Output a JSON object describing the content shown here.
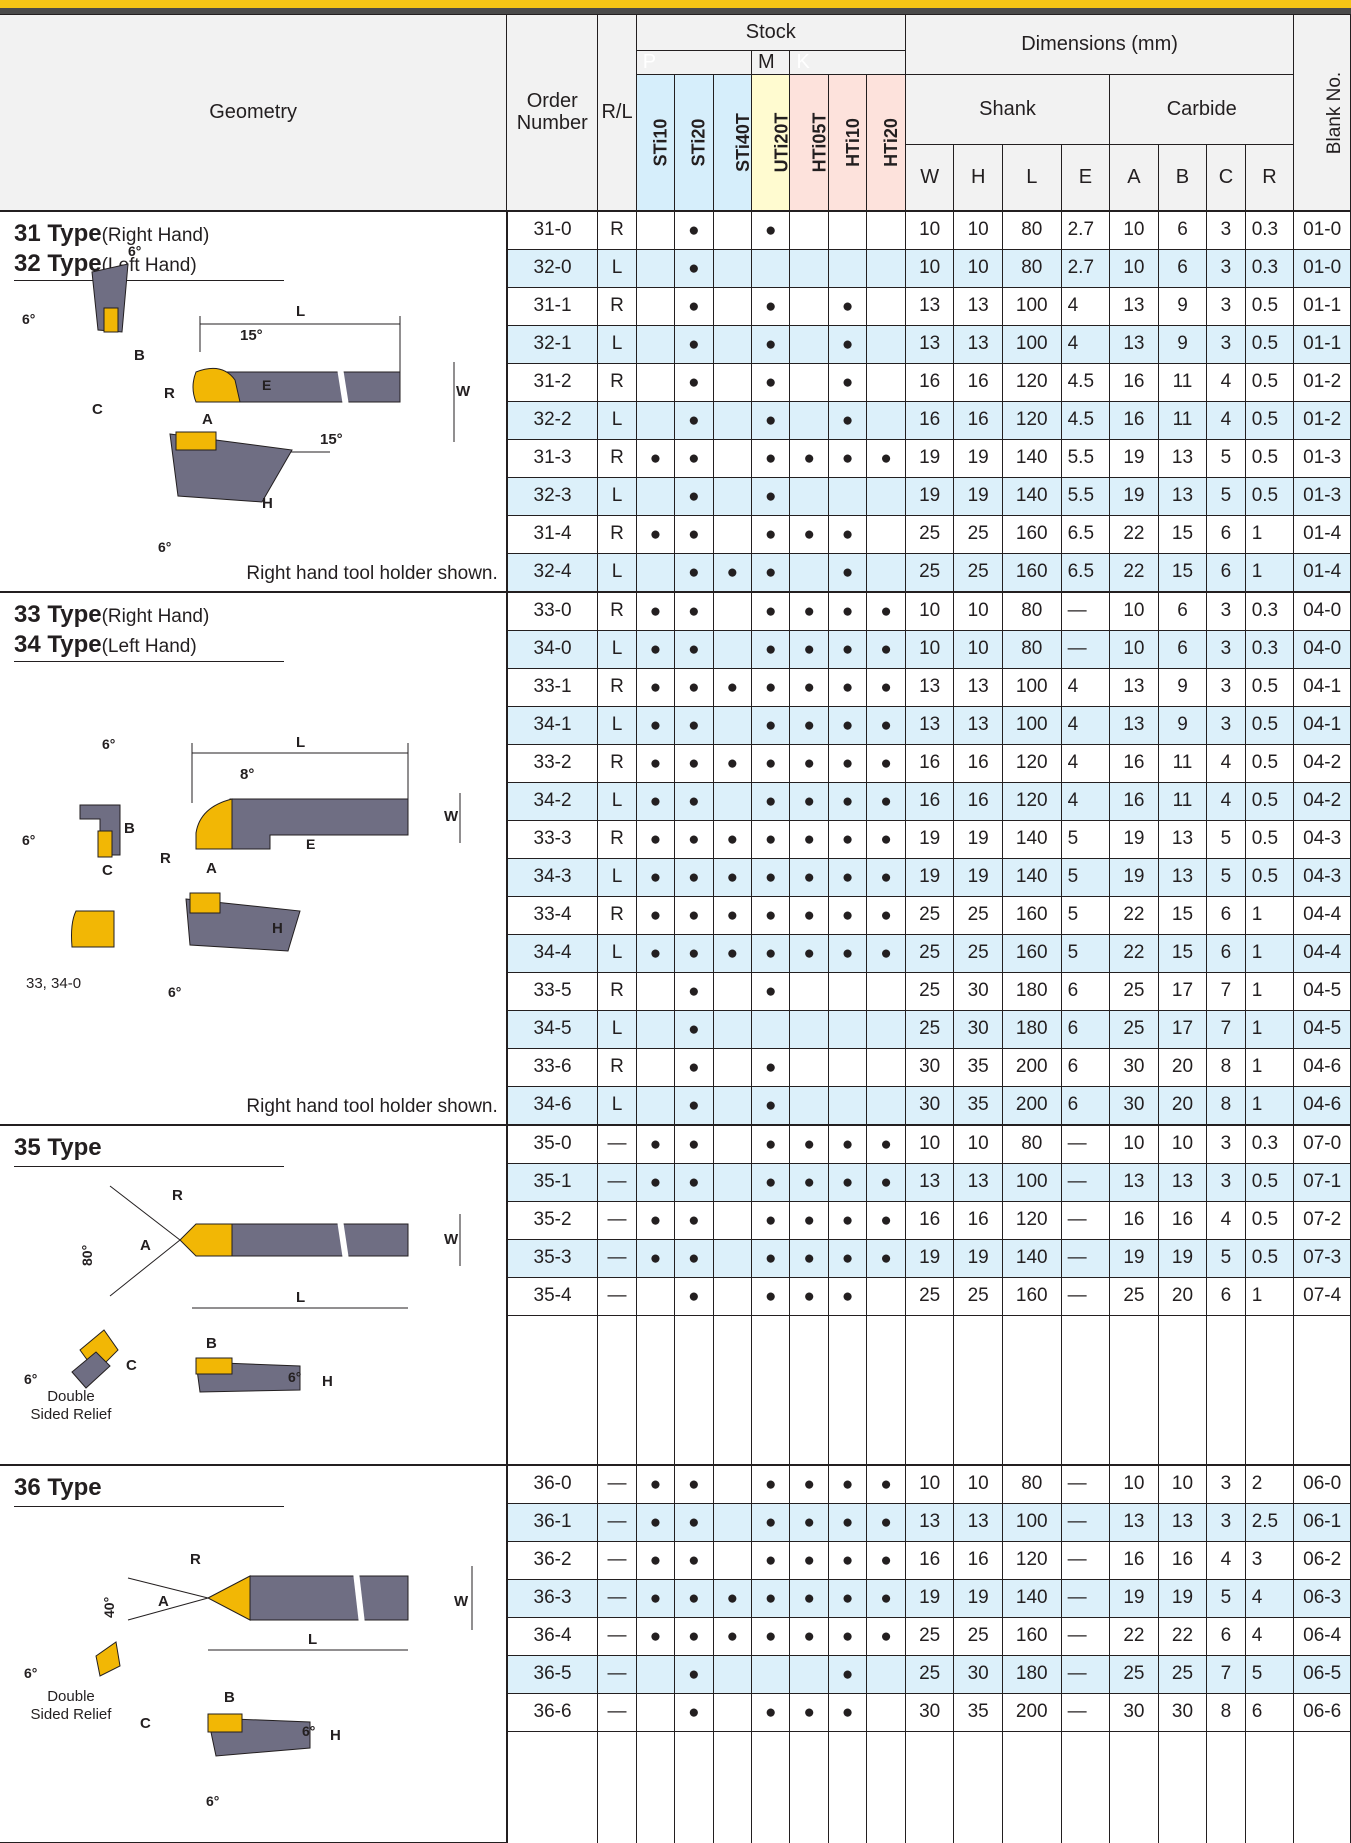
{
  "colors": {
    "accent": "#f6c515",
    "stripe": "#dcf0fa",
    "p": "#0096d6",
    "m": "#fff200",
    "k": "#ed1c24",
    "carbide": "#f2b705",
    "shank": "#6f6e83"
  },
  "header": {
    "geometry": "Geometry",
    "order_number": "Order Number",
    "rl": "R/L",
    "stock": "Stock",
    "groups": {
      "p": "P",
      "m": "M",
      "k": "K"
    },
    "grades": [
      "STi10",
      "STi20",
      "STi40T",
      "UTi20T",
      "HTi05T",
      "HTi10",
      "HTi20"
    ],
    "dimensions": "Dimensions (mm)",
    "shank": "Shank",
    "carbide": "Carbide",
    "dim_cols": [
      "W",
      "H",
      "L",
      "E",
      "A",
      "B",
      "C",
      "R"
    ],
    "blank_no": "Blank No."
  },
  "sections": [
    {
      "title1": "31 Type",
      "sub1": "(Right Hand)",
      "title2": "32 Type",
      "sub2": "(Left Hand)",
      "note": "Right hand tool holder shown.",
      "labels": {
        "l": "L",
        "deg6": "6°",
        "deg15": "15°",
        "b": "B",
        "c": "C",
        "r": "R",
        "a": "A",
        "e": "E",
        "w": "W",
        "h": "H"
      },
      "rows": [
        {
          "order": "31-0",
          "rl": "R",
          "dots": [
            "",
            "●",
            "",
            "●",
            "",
            "",
            ""
          ],
          "w": "10",
          "h": "10",
          "l": "80",
          "e": "2.7",
          "a": "10",
          "b": "6",
          "c": "3",
          "r": "0.3",
          "blank": "01-0"
        },
        {
          "order": "32-0",
          "rl": "L",
          "dots": [
            "",
            "●",
            "",
            "",
            "",
            "",
            ""
          ],
          "w": "10",
          "h": "10",
          "l": "80",
          "e": "2.7",
          "a": "10",
          "b": "6",
          "c": "3",
          "r": "0.3",
          "blank": "01-0"
        },
        {
          "order": "31-1",
          "rl": "R",
          "dots": [
            "",
            "●",
            "",
            "●",
            "",
            "●",
            ""
          ],
          "w": "13",
          "h": "13",
          "l": "100",
          "e": "4",
          "a": "13",
          "b": "9",
          "c": "3",
          "r": "0.5",
          "blank": "01-1"
        },
        {
          "order": "32-1",
          "rl": "L",
          "dots": [
            "",
            "●",
            "",
            "●",
            "",
            "●",
            ""
          ],
          "w": "13",
          "h": "13",
          "l": "100",
          "e": "4",
          "a": "13",
          "b": "9",
          "c": "3",
          "r": "0.5",
          "blank": "01-1"
        },
        {
          "order": "31-2",
          "rl": "R",
          "dots": [
            "",
            "●",
            "",
            "●",
            "",
            "●",
            ""
          ],
          "w": "16",
          "h": "16",
          "l": "120",
          "e": "4.5",
          "a": "16",
          "b": "11",
          "c": "4",
          "r": "0.5",
          "blank": "01-2"
        },
        {
          "order": "32-2",
          "rl": "L",
          "dots": [
            "",
            "●",
            "",
            "●",
            "",
            "●",
            ""
          ],
          "w": "16",
          "h": "16",
          "l": "120",
          "e": "4.5",
          "a": "16",
          "b": "11",
          "c": "4",
          "r": "0.5",
          "blank": "01-2"
        },
        {
          "order": "31-3",
          "rl": "R",
          "dots": [
            "●",
            "●",
            "",
            "●",
            "●",
            "●",
            "●"
          ],
          "w": "19",
          "h": "19",
          "l": "140",
          "e": "5.5",
          "a": "19",
          "b": "13",
          "c": "5",
          "r": "0.5",
          "blank": "01-3"
        },
        {
          "order": "32-3",
          "rl": "L",
          "dots": [
            "",
            "●",
            "",
            "●",
            "",
            "",
            ""
          ],
          "w": "19",
          "h": "19",
          "l": "140",
          "e": "5.5",
          "a": "19",
          "b": "13",
          "c": "5",
          "r": "0.5",
          "blank": "01-3"
        },
        {
          "order": "31-4",
          "rl": "R",
          "dots": [
            "●",
            "●",
            "",
            "●",
            "●",
            "●",
            ""
          ],
          "w": "25",
          "h": "25",
          "l": "160",
          "e": "6.5",
          "a": "22",
          "b": "15",
          "c": "6",
          "r": "1",
          "blank": "01-4"
        },
        {
          "order": "32-4",
          "rl": "L",
          "dots": [
            "",
            "●",
            "●",
            "●",
            "",
            "●",
            ""
          ],
          "w": "25",
          "h": "25",
          "l": "160",
          "e": "6.5",
          "a": "22",
          "b": "15",
          "c": "6",
          "r": "1",
          "blank": "01-4"
        }
      ]
    },
    {
      "title1": "33 Type",
      "sub1": "(Right Hand)",
      "title2": "34 Type",
      "sub2": "(Left Hand)",
      "note": "Right hand tool holder shown.",
      "caption": "33, 34-0",
      "labels": {
        "l": "L",
        "deg6": "6°",
        "deg8": "8°",
        "b": "B",
        "c": "C",
        "r": "R",
        "a": "A",
        "e": "E",
        "w": "W",
        "h": "H"
      },
      "rows": [
        {
          "order": "33-0",
          "rl": "R",
          "dots": [
            "●",
            "●",
            "",
            "●",
            "●",
            "●",
            "●"
          ],
          "w": "10",
          "h": "10",
          "l": "80",
          "e": "—",
          "a": "10",
          "b": "6",
          "c": "3",
          "r": "0.3",
          "blank": "04-0"
        },
        {
          "order": "34-0",
          "rl": "L",
          "dots": [
            "●",
            "●",
            "",
            "●",
            "●",
            "●",
            "●"
          ],
          "w": "10",
          "h": "10",
          "l": "80",
          "e": "—",
          "a": "10",
          "b": "6",
          "c": "3",
          "r": "0.3",
          "blank": "04-0"
        },
        {
          "order": "33-1",
          "rl": "R",
          "dots": [
            "●",
            "●",
            "●",
            "●",
            "●",
            "●",
            "●"
          ],
          "w": "13",
          "h": "13",
          "l": "100",
          "e": "4",
          "a": "13",
          "b": "9",
          "c": "3",
          "r": "0.5",
          "blank": "04-1"
        },
        {
          "order": "34-1",
          "rl": "L",
          "dots": [
            "●",
            "●",
            "",
            "●",
            "●",
            "●",
            "●"
          ],
          "w": "13",
          "h": "13",
          "l": "100",
          "e": "4",
          "a": "13",
          "b": "9",
          "c": "3",
          "r": "0.5",
          "blank": "04-1"
        },
        {
          "order": "33-2",
          "rl": "R",
          "dots": [
            "●",
            "●",
            "●",
            "●",
            "●",
            "●",
            "●"
          ],
          "w": "16",
          "h": "16",
          "l": "120",
          "e": "4",
          "a": "16",
          "b": "11",
          "c": "4",
          "r": "0.5",
          "blank": "04-2"
        },
        {
          "order": "34-2",
          "rl": "L",
          "dots": [
            "●",
            "●",
            "",
            "●",
            "●",
            "●",
            "●"
          ],
          "w": "16",
          "h": "16",
          "l": "120",
          "e": "4",
          "a": "16",
          "b": "11",
          "c": "4",
          "r": "0.5",
          "blank": "04-2"
        },
        {
          "order": "33-3",
          "rl": "R",
          "dots": [
            "●",
            "●",
            "●",
            "●",
            "●",
            "●",
            "●"
          ],
          "w": "19",
          "h": "19",
          "l": "140",
          "e": "5",
          "a": "19",
          "b": "13",
          "c": "5",
          "r": "0.5",
          "blank": "04-3"
        },
        {
          "order": "34-3",
          "rl": "L",
          "dots": [
            "●",
            "●",
            "●",
            "●",
            "●",
            "●",
            "●"
          ],
          "w": "19",
          "h": "19",
          "l": "140",
          "e": "5",
          "a": "19",
          "b": "13",
          "c": "5",
          "r": "0.5",
          "blank": "04-3"
        },
        {
          "order": "33-4",
          "rl": "R",
          "dots": [
            "●",
            "●",
            "●",
            "●",
            "●",
            "●",
            "●"
          ],
          "w": "25",
          "h": "25",
          "l": "160",
          "e": "5",
          "a": "22",
          "b": "15",
          "c": "6",
          "r": "1",
          "blank": "04-4"
        },
        {
          "order": "34-4",
          "rl": "L",
          "dots": [
            "●",
            "●",
            "●",
            "●",
            "●",
            "●",
            "●"
          ],
          "w": "25",
          "h": "25",
          "l": "160",
          "e": "5",
          "a": "22",
          "b": "15",
          "c": "6",
          "r": "1",
          "blank": "04-4"
        },
        {
          "order": "33-5",
          "rl": "R",
          "dots": [
            "",
            "●",
            "",
            "●",
            "",
            "",
            ""
          ],
          "w": "25",
          "h": "30",
          "l": "180",
          "e": "6",
          "a": "25",
          "b": "17",
          "c": "7",
          "r": "1",
          "blank": "04-5"
        },
        {
          "order": "34-5",
          "rl": "L",
          "dots": [
            "",
            "●",
            "",
            "",
            "",
            "",
            ""
          ],
          "w": "25",
          "h": "30",
          "l": "180",
          "e": "6",
          "a": "25",
          "b": "17",
          "c": "7",
          "r": "1",
          "blank": "04-5"
        },
        {
          "order": "33-6",
          "rl": "R",
          "dots": [
            "",
            "●",
            "",
            "●",
            "",
            "",
            ""
          ],
          "w": "30",
          "h": "35",
          "l": "200",
          "e": "6",
          "a": "30",
          "b": "20",
          "c": "8",
          "r": "1",
          "blank": "04-6"
        },
        {
          "order": "34-6",
          "rl": "L",
          "dots": [
            "",
            "●",
            "",
            "●",
            "",
            "",
            ""
          ],
          "w": "30",
          "h": "35",
          "l": "200",
          "e": "6",
          "a": "30",
          "b": "20",
          "c": "8",
          "r": "1",
          "blank": "04-6"
        }
      ]
    },
    {
      "title1": "35 Type",
      "caption": "Double Sided Relief",
      "labels": {
        "l": "L",
        "deg80": "80°",
        "deg6": "6°",
        "b": "B",
        "c": "C",
        "r": "R",
        "a": "A",
        "w": "W",
        "h": "H"
      },
      "rows": [
        {
          "order": "35-0",
          "rl": "—",
          "dots": [
            "●",
            "●",
            "",
            "●",
            "●",
            "●",
            "●"
          ],
          "w": "10",
          "h": "10",
          "l": "80",
          "e": "—",
          "a": "10",
          "b": "10",
          "c": "3",
          "r": "0.3",
          "blank": "07-0"
        },
        {
          "order": "35-1",
          "rl": "—",
          "dots": [
            "●",
            "●",
            "",
            "●",
            "●",
            "●",
            "●"
          ],
          "w": "13",
          "h": "13",
          "l": "100",
          "e": "—",
          "a": "13",
          "b": "13",
          "c": "3",
          "r": "0.5",
          "blank": "07-1"
        },
        {
          "order": "35-2",
          "rl": "—",
          "dots": [
            "●",
            "●",
            "",
            "●",
            "●",
            "●",
            "●"
          ],
          "w": "16",
          "h": "16",
          "l": "120",
          "e": "—",
          "a": "16",
          "b": "16",
          "c": "4",
          "r": "0.5",
          "blank": "07-2"
        },
        {
          "order": "35-3",
          "rl": "—",
          "dots": [
            "●",
            "●",
            "",
            "●",
            "●",
            "●",
            "●"
          ],
          "w": "19",
          "h": "19",
          "l": "140",
          "e": "—",
          "a": "19",
          "b": "19",
          "c": "5",
          "r": "0.5",
          "blank": "07-3"
        },
        {
          "order": "35-4",
          "rl": "—",
          "dots": [
            "",
            "●",
            "",
            "●",
            "●",
            "●",
            ""
          ],
          "w": "25",
          "h": "25",
          "l": "160",
          "e": "—",
          "a": "25",
          "b": "20",
          "c": "6",
          "r": "1",
          "blank": "07-4"
        }
      ]
    },
    {
      "title1": "36 Type",
      "caption": "Double Sided Relief",
      "labels": {
        "l": "L",
        "deg40": "40°",
        "deg6": "6°",
        "b": "B",
        "c": "C",
        "r": "R",
        "a": "A",
        "w": "W",
        "h": "H"
      },
      "rows": [
        {
          "order": "36-0",
          "rl": "—",
          "dots": [
            "●",
            "●",
            "",
            "●",
            "●",
            "●",
            "●"
          ],
          "w": "10",
          "h": "10",
          "l": "80",
          "e": "—",
          "a": "10",
          "b": "10",
          "c": "3",
          "r": "2",
          "blank": "06-0"
        },
        {
          "order": "36-1",
          "rl": "—",
          "dots": [
            "●",
            "●",
            "",
            "●",
            "●",
            "●",
            "●"
          ],
          "w": "13",
          "h": "13",
          "l": "100",
          "e": "—",
          "a": "13",
          "b": "13",
          "c": "3",
          "r": "2.5",
          "blank": "06-1"
        },
        {
          "order": "36-2",
          "rl": "—",
          "dots": [
            "●",
            "●",
            "",
            "●",
            "●",
            "●",
            "●"
          ],
          "w": "16",
          "h": "16",
          "l": "120",
          "e": "—",
          "a": "16",
          "b": "16",
          "c": "4",
          "r": "3",
          "blank": "06-2"
        },
        {
          "order": "36-3",
          "rl": "—",
          "dots": [
            "●",
            "●",
            "●",
            "●",
            "●",
            "●",
            "●"
          ],
          "w": "19",
          "h": "19",
          "l": "140",
          "e": "—",
          "a": "19",
          "b": "19",
          "c": "5",
          "r": "4",
          "blank": "06-3"
        },
        {
          "order": "36-4",
          "rl": "—",
          "dots": [
            "●",
            "●",
            "●",
            "●",
            "●",
            "●",
            "●"
          ],
          "w": "25",
          "h": "25",
          "l": "160",
          "e": "—",
          "a": "22",
          "b": "22",
          "c": "6",
          "r": "4",
          "blank": "06-4"
        },
        {
          "order": "36-5",
          "rl": "—",
          "dots": [
            "",
            "●",
            "",
            "",
            "",
            "●",
            ""
          ],
          "w": "25",
          "h": "30",
          "l": "180",
          "e": "—",
          "a": "25",
          "b": "25",
          "c": "7",
          "r": "5",
          "blank": "06-5"
        },
        {
          "order": "36-6",
          "rl": "—",
          "dots": [
            "",
            "●",
            "",
            "●",
            "●",
            "●",
            ""
          ],
          "w": "30",
          "h": "35",
          "l": "200",
          "e": "—",
          "a": "30",
          "b": "30",
          "c": "8",
          "r": "6",
          "blank": "06-6"
        }
      ]
    }
  ]
}
